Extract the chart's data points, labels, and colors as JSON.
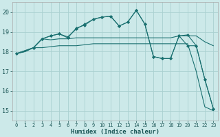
{
  "xlabel": "Humidex (Indice chaleur)",
  "bg_color": "#cce9e9",
  "grid_color": "#aad0d0",
  "line_color": "#1a7070",
  "xlim": [
    -0.5,
    23.5
  ],
  "ylim": [
    14.5,
    20.5
  ],
  "yticks": [
    15,
    16,
    17,
    18,
    19,
    20
  ],
  "xticks": [
    0,
    1,
    2,
    3,
    4,
    5,
    6,
    7,
    8,
    9,
    10,
    11,
    12,
    13,
    14,
    15,
    16,
    17,
    18,
    19,
    20,
    21,
    22,
    23
  ],
  "s0x": [
    0,
    1,
    2,
    3,
    4,
    5,
    6,
    7,
    8,
    9,
    10,
    11,
    12,
    13,
    14,
    15,
    16,
    17,
    18,
    19,
    20,
    21,
    22,
    23
  ],
  "s0y": [
    17.9,
    18.0,
    18.2,
    18.2,
    18.25,
    18.3,
    18.3,
    18.3,
    18.35,
    18.4,
    18.4,
    18.4,
    18.4,
    18.4,
    18.4,
    18.4,
    18.4,
    18.4,
    18.4,
    18.4,
    18.4,
    17.0,
    15.2,
    15.0
  ],
  "s1x": [
    0,
    1,
    2,
    3,
    4,
    5,
    6,
    7,
    8,
    9,
    10,
    11,
    12,
    13,
    14,
    15,
    16,
    17,
    18,
    19,
    20,
    21,
    22,
    23
  ],
  "s1y": [
    17.9,
    18.0,
    18.2,
    18.65,
    18.6,
    18.65,
    18.65,
    18.7,
    18.7,
    18.7,
    18.7,
    18.7,
    18.7,
    18.7,
    18.7,
    18.7,
    18.7,
    18.7,
    18.7,
    18.8,
    18.8,
    18.8,
    18.5,
    18.3
  ],
  "s2x": [
    0,
    2,
    3,
    4,
    5,
    6,
    7,
    8,
    9,
    10,
    11,
    12,
    13,
    14,
    15,
    16,
    17,
    18,
    19,
    20,
    21,
    22,
    23
  ],
  "s2y": [
    17.9,
    18.2,
    18.65,
    18.8,
    18.9,
    18.7,
    19.2,
    19.35,
    19.65,
    19.75,
    19.8,
    19.3,
    19.5,
    20.1,
    19.4,
    17.75,
    17.65,
    17.65,
    18.8,
    18.3,
    18.3,
    16.6,
    15.1
  ],
  "s3x": [
    0,
    2,
    3,
    4,
    5,
    6,
    7,
    8,
    9,
    10,
    11,
    12,
    13,
    14,
    15,
    16,
    17,
    18,
    19,
    20,
    21,
    22,
    23
  ],
  "s3y": [
    17.9,
    18.2,
    18.65,
    18.8,
    18.9,
    18.75,
    19.15,
    19.4,
    19.65,
    19.75,
    19.8,
    19.3,
    19.5,
    20.1,
    19.4,
    17.75,
    17.65,
    17.65,
    18.8,
    18.85,
    18.3,
    16.6,
    15.1
  ]
}
